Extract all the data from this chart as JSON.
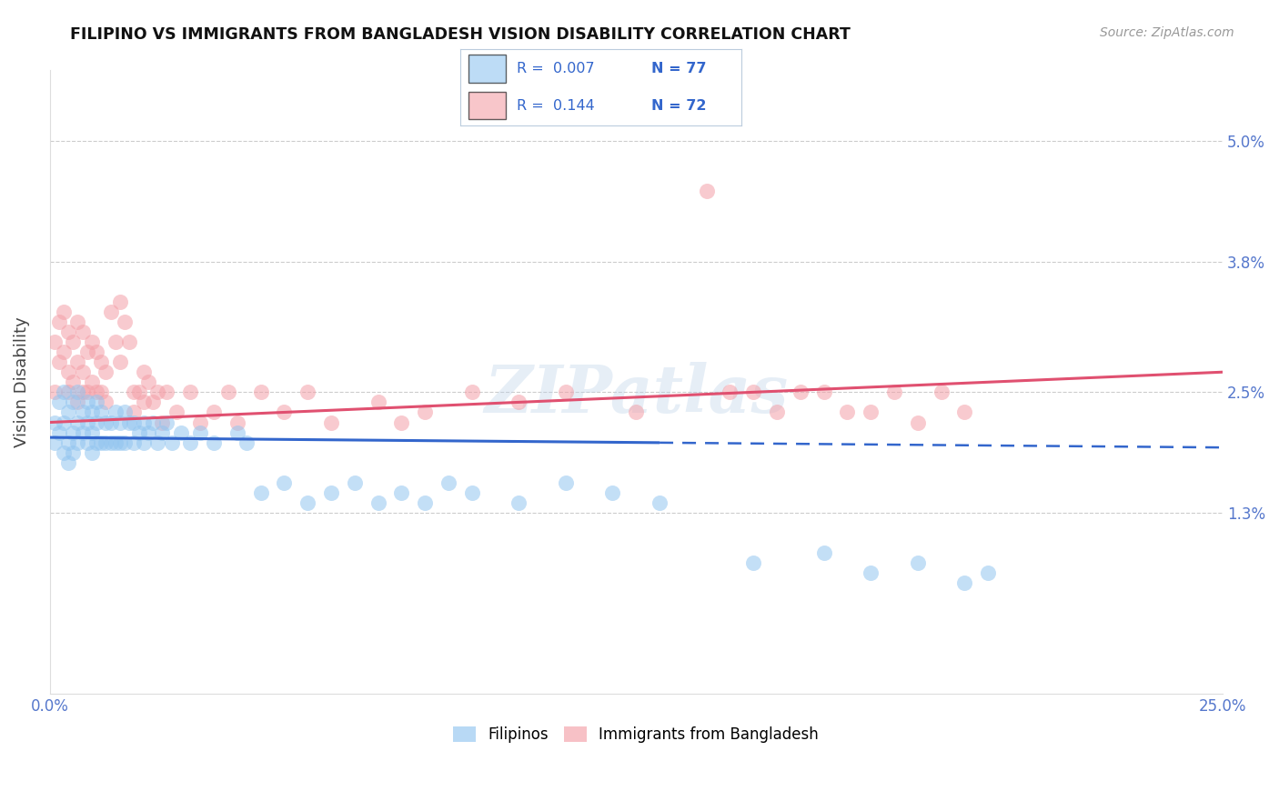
{
  "title": "FILIPINO VS IMMIGRANTS FROM BANGLADESH VISION DISABILITY CORRELATION CHART",
  "source": "Source: ZipAtlas.com",
  "ylabel": "Vision Disability",
  "ytick_labels": [
    "5.0%",
    "3.8%",
    "2.5%",
    "1.3%"
  ],
  "ytick_values": [
    0.05,
    0.038,
    0.025,
    0.013
  ],
  "xlim": [
    0.0,
    0.25
  ],
  "ylim": [
    -0.005,
    0.057
  ],
  "legend_r1": "R = 0.007",
  "legend_n1": "N = 77",
  "legend_r2": "R = 0.144",
  "legend_n2": "N = 72",
  "color_filipino": "#92C5F0",
  "color_bangladesh": "#F4A0A8",
  "color_trendline_filipino": "#3366CC",
  "color_trendline_bangladesh": "#E05070",
  "watermark": "ZIPatlas",
  "filipino_x": [
    0.001,
    0.001,
    0.002,
    0.002,
    0.003,
    0.003,
    0.003,
    0.004,
    0.004,
    0.004,
    0.005,
    0.005,
    0.005,
    0.006,
    0.006,
    0.006,
    0.007,
    0.007,
    0.008,
    0.008,
    0.008,
    0.009,
    0.009,
    0.009,
    0.01,
    0.01,
    0.01,
    0.011,
    0.011,
    0.012,
    0.012,
    0.013,
    0.013,
    0.014,
    0.014,
    0.015,
    0.015,
    0.016,
    0.016,
    0.017,
    0.018,
    0.018,
    0.019,
    0.02,
    0.02,
    0.021,
    0.022,
    0.023,
    0.024,
    0.025,
    0.026,
    0.028,
    0.03,
    0.032,
    0.035,
    0.04,
    0.042,
    0.045,
    0.05,
    0.055,
    0.06,
    0.065,
    0.07,
    0.075,
    0.08,
    0.085,
    0.09,
    0.1,
    0.11,
    0.12,
    0.13,
    0.15,
    0.165,
    0.175,
    0.185,
    0.195,
    0.2
  ],
  "filipino_y": [
    0.022,
    0.02,
    0.024,
    0.021,
    0.025,
    0.022,
    0.019,
    0.023,
    0.02,
    0.018,
    0.024,
    0.021,
    0.019,
    0.025,
    0.022,
    0.02,
    0.023,
    0.021,
    0.024,
    0.022,
    0.02,
    0.023,
    0.021,
    0.019,
    0.024,
    0.022,
    0.02,
    0.023,
    0.02,
    0.022,
    0.02,
    0.022,
    0.02,
    0.023,
    0.02,
    0.022,
    0.02,
    0.023,
    0.02,
    0.022,
    0.022,
    0.02,
    0.021,
    0.022,
    0.02,
    0.021,
    0.022,
    0.02,
    0.021,
    0.022,
    0.02,
    0.021,
    0.02,
    0.021,
    0.02,
    0.021,
    0.02,
    0.015,
    0.016,
    0.014,
    0.015,
    0.016,
    0.014,
    0.015,
    0.014,
    0.016,
    0.015,
    0.014,
    0.016,
    0.015,
    0.014,
    0.008,
    0.009,
    0.007,
    0.008,
    0.006,
    0.007
  ],
  "bangladesh_x": [
    0.001,
    0.001,
    0.002,
    0.002,
    0.003,
    0.003,
    0.004,
    0.004,
    0.004,
    0.005,
    0.005,
    0.006,
    0.006,
    0.006,
    0.007,
    0.007,
    0.007,
    0.008,
    0.008,
    0.009,
    0.009,
    0.01,
    0.01,
    0.011,
    0.011,
    0.012,
    0.012,
    0.013,
    0.014,
    0.015,
    0.015,
    0.016,
    0.017,
    0.018,
    0.018,
    0.019,
    0.02,
    0.02,
    0.021,
    0.022,
    0.023,
    0.024,
    0.025,
    0.027,
    0.03,
    0.032,
    0.035,
    0.038,
    0.04,
    0.045,
    0.05,
    0.055,
    0.06,
    0.07,
    0.075,
    0.08,
    0.09,
    0.1,
    0.11,
    0.125,
    0.14,
    0.15,
    0.16,
    0.17,
    0.18,
    0.185,
    0.19,
    0.195,
    0.145,
    0.155,
    0.165,
    0.175
  ],
  "bangladesh_y": [
    0.03,
    0.025,
    0.032,
    0.028,
    0.033,
    0.029,
    0.031,
    0.027,
    0.025,
    0.03,
    0.026,
    0.032,
    0.028,
    0.024,
    0.031,
    0.027,
    0.025,
    0.029,
    0.025,
    0.03,
    0.026,
    0.029,
    0.025,
    0.028,
    0.025,
    0.027,
    0.024,
    0.033,
    0.03,
    0.034,
    0.028,
    0.032,
    0.03,
    0.025,
    0.023,
    0.025,
    0.027,
    0.024,
    0.026,
    0.024,
    0.025,
    0.022,
    0.025,
    0.023,
    0.025,
    0.022,
    0.023,
    0.025,
    0.022,
    0.025,
    0.023,
    0.025,
    0.022,
    0.024,
    0.022,
    0.023,
    0.025,
    0.024,
    0.025,
    0.023,
    0.045,
    0.025,
    0.025,
    0.023,
    0.025,
    0.022,
    0.025,
    0.023,
    0.025,
    0.023,
    0.025,
    0.023
  ],
  "fil_trend_solid_end": 0.13,
  "fil_trend_start_y": 0.0205,
  "fil_trend_end_y": 0.0195,
  "ban_trend_start_y": 0.022,
  "ban_trend_end_y": 0.027
}
